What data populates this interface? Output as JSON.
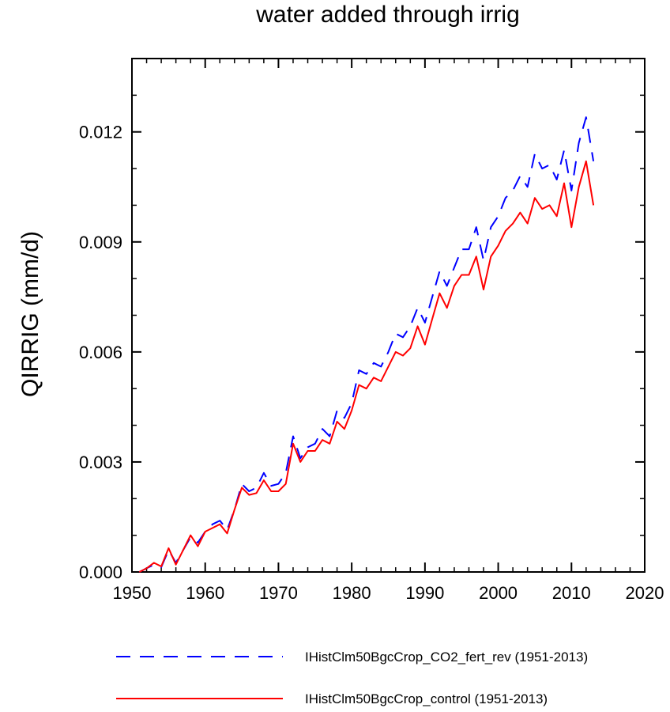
{
  "chart_data": {
    "type": "line",
    "title": "water added through irrig",
    "xlabel": "",
    "ylabel": "QIRRIG  (mm/d)",
    "xlim": [
      1950,
      2020
    ],
    "ylim": [
      0.0,
      0.014
    ],
    "x_ticks": [
      1950,
      1960,
      1970,
      1980,
      1990,
      2000,
      2010,
      2020
    ],
    "x_tick_labels": [
      "1950",
      "1960",
      "1970",
      "1980",
      "1990",
      "2000",
      "2010",
      "2020"
    ],
    "y_ticks": [
      0.0,
      0.003,
      0.006,
      0.009,
      0.012
    ],
    "y_tick_labels": [
      "0.000",
      "0.003",
      "0.006",
      "0.009",
      "0.012"
    ],
    "grid": false,
    "legend_position": "bottom",
    "x": [
      1951,
      1952,
      1953,
      1954,
      1955,
      1956,
      1957,
      1958,
      1959,
      1960,
      1961,
      1962,
      1963,
      1964,
      1965,
      1966,
      1967,
      1968,
      1969,
      1970,
      1971,
      1972,
      1973,
      1974,
      1975,
      1976,
      1977,
      1978,
      1979,
      1980,
      1981,
      1982,
      1983,
      1984,
      1985,
      1986,
      1987,
      1988,
      1989,
      1990,
      1991,
      1992,
      1993,
      1994,
      1995,
      1996,
      1997,
      1998,
      1999,
      2000,
      2001,
      2002,
      2003,
      2004,
      2005,
      2006,
      2007,
      2008,
      2009,
      2010,
      2011,
      2012,
      2013
    ],
    "series": [
      {
        "name": "IHistClm50BgcCrop_CO2_fert_rev (1951-2013)",
        "color": "#0000ff",
        "dash": "dashed",
        "values": [
          0.0,
          0.0001,
          0.0002,
          0.00013,
          0.0006,
          0.00025,
          0.0006,
          0.00095,
          0.0008,
          0.0011,
          0.0013,
          0.0014,
          0.00115,
          0.0017,
          0.0024,
          0.0022,
          0.0023,
          0.0027,
          0.00235,
          0.0024,
          0.0027,
          0.0037,
          0.0031,
          0.0034,
          0.0035,
          0.0039,
          0.0037,
          0.0044,
          0.0042,
          0.0046,
          0.0055,
          0.0054,
          0.0057,
          0.0056,
          0.006,
          0.0065,
          0.0064,
          0.0067,
          0.0072,
          0.0068,
          0.0075,
          0.0082,
          0.0078,
          0.0083,
          0.0088,
          0.0088,
          0.0094,
          0.0085,
          0.0094,
          0.0097,
          0.0102,
          0.0104,
          0.0108,
          0.0105,
          0.0114,
          0.011,
          0.0111,
          0.0107,
          0.0115,
          0.0104,
          0.0117,
          0.0124,
          0.0112
        ]
      },
      {
        "name": "IHistClm50BgcCrop_control (1951-2013)",
        "color": "#ff0000",
        "dash": "solid",
        "values": [
          0.0,
          0.0001,
          0.00025,
          0.00015,
          0.00065,
          0.0002,
          0.0006,
          0.001,
          0.0007,
          0.0011,
          0.0012,
          0.0013,
          0.00105,
          0.0017,
          0.0023,
          0.0021,
          0.00215,
          0.0025,
          0.0022,
          0.0022,
          0.0024,
          0.0035,
          0.003,
          0.0033,
          0.0033,
          0.0036,
          0.0035,
          0.0041,
          0.0039,
          0.0044,
          0.0051,
          0.005,
          0.0053,
          0.0052,
          0.0056,
          0.006,
          0.0059,
          0.0061,
          0.0067,
          0.0062,
          0.0069,
          0.0076,
          0.0072,
          0.0078,
          0.0081,
          0.0081,
          0.0086,
          0.0077,
          0.0086,
          0.0089,
          0.0093,
          0.0095,
          0.0098,
          0.0095,
          0.0102,
          0.0099,
          0.01,
          0.0097,
          0.0106,
          0.0094,
          0.0105,
          0.0112,
          0.01
        ]
      }
    ]
  }
}
